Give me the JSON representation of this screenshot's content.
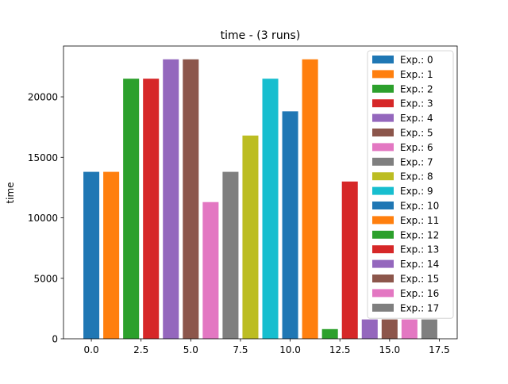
{
  "chart_data": {
    "type": "bar",
    "title": "time - (3 runs)",
    "xlabel": "",
    "ylabel": "time",
    "xlim": [
      -1.4,
      18.4
    ],
    "ylim": [
      0,
      24200
    ],
    "x_ticks": [
      0.0,
      2.5,
      5.0,
      7.5,
      10.0,
      12.5,
      15.0,
      17.5
    ],
    "x_tick_labels": [
      "0.0",
      "2.5",
      "5.0",
      "7.5",
      "10.0",
      "12.5",
      "15.0",
      "17.5"
    ],
    "y_ticks": [
      0,
      5000,
      10000,
      15000,
      20000
    ],
    "y_tick_labels": [
      "0",
      "5000",
      "10000",
      "15000",
      "20000"
    ],
    "grid": false,
    "legend_position": "top-right",
    "series": [
      {
        "name": "Exp.: 0",
        "x": 0,
        "value": 13800,
        "color": "#1f77b4"
      },
      {
        "name": "Exp.: 1",
        "x": 1,
        "value": 13800,
        "color": "#ff7f0e"
      },
      {
        "name": "Exp.: 2",
        "x": 2,
        "value": 21500,
        "color": "#2ca02c"
      },
      {
        "name": "Exp.: 3",
        "x": 3,
        "value": 21500,
        "color": "#d62728"
      },
      {
        "name": "Exp.: 4",
        "x": 4,
        "value": 23100,
        "color": "#9467bd"
      },
      {
        "name": "Exp.: 5",
        "x": 5,
        "value": 23100,
        "color": "#8c564b"
      },
      {
        "name": "Exp.: 6",
        "x": 6,
        "value": 11300,
        "color": "#e377c2"
      },
      {
        "name": "Exp.: 7",
        "x": 7,
        "value": 13800,
        "color": "#7f7f7f"
      },
      {
        "name": "Exp.: 8",
        "x": 8,
        "value": 16800,
        "color": "#bcbd22"
      },
      {
        "name": "Exp.: 9",
        "x": 9,
        "value": 21500,
        "color": "#17becf"
      },
      {
        "name": "Exp.: 10",
        "x": 10,
        "value": 18800,
        "color": "#1f77b4"
      },
      {
        "name": "Exp.: 11",
        "x": 11,
        "value": 23100,
        "color": "#ff7f0e"
      },
      {
        "name": "Exp.: 12",
        "x": 12,
        "value": 800,
        "color": "#2ca02c"
      },
      {
        "name": "Exp.: 13",
        "x": 13,
        "value": 13000,
        "color": "#d62728"
      },
      {
        "name": "Exp.: 14",
        "x": 14,
        "value": 1600,
        "color": "#9467bd"
      },
      {
        "name": "Exp.: 15",
        "x": 15,
        "value": 1600,
        "color": "#8c564b"
      },
      {
        "name": "Exp.: 16",
        "x": 16,
        "value": 1600,
        "color": "#e377c2"
      },
      {
        "name": "Exp.: 17",
        "x": 17,
        "value": 1600,
        "color": "#7f7f7f"
      }
    ]
  }
}
